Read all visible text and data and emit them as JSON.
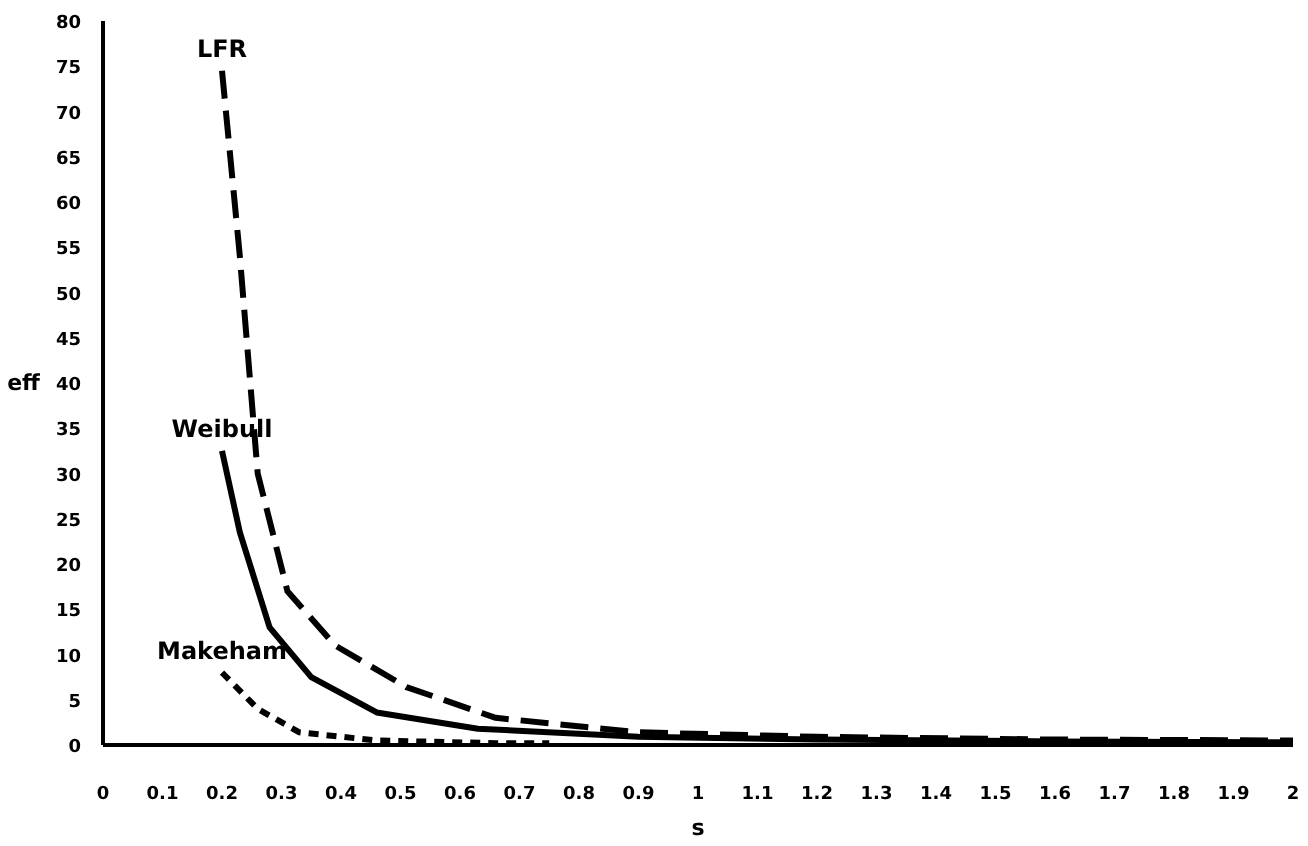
{
  "chart_data": {
    "type": "line",
    "xlabel": "s",
    "ylabel": "eff",
    "xlim": [
      0,
      2
    ],
    "xticks": [
      0,
      0.1,
      0.2,
      0.3,
      0.4,
      0.5,
      0.6,
      0.7,
      0.8,
      0.9,
      1,
      1.1,
      1.2,
      1.3,
      1.4,
      1.5,
      1.6,
      1.7,
      1.8,
      1.9,
      2
    ],
    "ylim": [
      0,
      80
    ],
    "yticks": [
      0,
      5,
      10,
      15,
      20,
      25,
      30,
      35,
      40,
      45,
      50,
      55,
      60,
      65,
      70,
      75,
      80
    ],
    "grid": false,
    "series": [
      {
        "name": "LFR",
        "color": "#000000",
        "line_style": "dashed",
        "x": [
          0.2,
          0.23,
          0.26,
          0.31,
          0.39,
          0.51,
          0.66,
          0.9,
          1.2,
          1.6,
          2
        ],
        "values": [
          74.5,
          54,
          30,
          17,
          11,
          6.4,
          3,
          1.4,
          0.9,
          0.6,
          0.5
        ]
      },
      {
        "name": "Weibull",
        "color": "#000000",
        "line_style": "solid",
        "x": [
          0.2,
          0.23,
          0.28,
          0.35,
          0.46,
          0.63,
          0.9,
          1.2,
          1.6,
          2
        ],
        "values": [
          32.5,
          23.5,
          13,
          7.5,
          3.6,
          1.8,
          0.9,
          0.6,
          0.4,
          0.3
        ]
      },
      {
        "name": "Makeham",
        "color": "#000000",
        "line_style": "dotted",
        "x": [
          0.2,
          0.26,
          0.33,
          0.46,
          0.66,
          0.75
        ],
        "values": [
          8,
          4,
          1.4,
          0.5,
          0.2,
          0.2
        ]
      }
    ]
  }
}
